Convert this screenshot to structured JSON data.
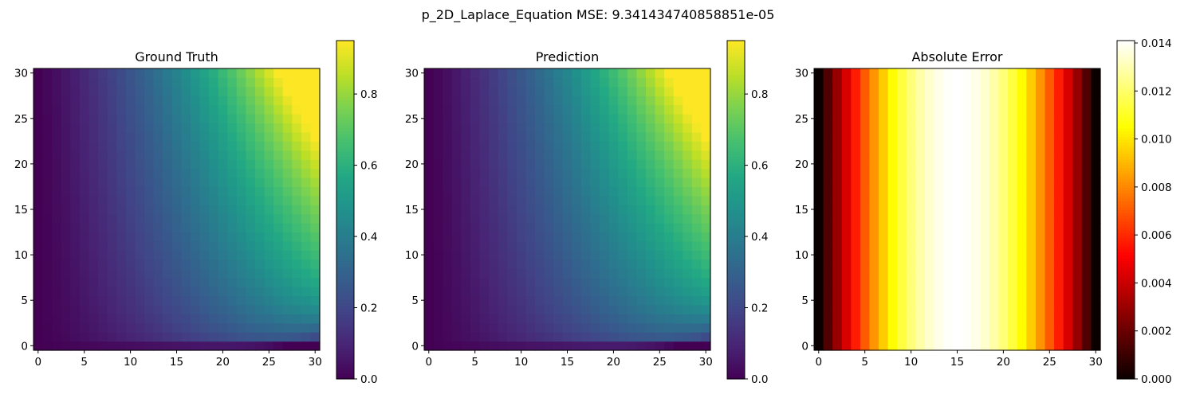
{
  "figure": {
    "suptitle": "p_2D_Laplace_Equation MSE: 9.341434740858851e-05"
  },
  "chart_data": [
    {
      "type": "heatmap",
      "title": "Ground Truth",
      "colormap": "viridis",
      "grid_size": 31,
      "x_ticks": [
        "0",
        "5",
        "10",
        "15",
        "20",
        "25",
        "30"
      ],
      "y_ticks": [
        "0",
        "5",
        "10",
        "15",
        "20",
        "25",
        "30"
      ],
      "xlim": [
        -0.5,
        30.5
      ],
      "ylim": [
        -0.5,
        30.5
      ],
      "color_range": [
        0,
        0.95
      ],
      "colorbar_ticks": [
        "0.0",
        "0.2",
        "0.4",
        "0.6",
        "0.8"
      ],
      "colorbar_tick_values": [
        0,
        0.2,
        0.4,
        0.6,
        0.8
      ]
    },
    {
      "type": "heatmap",
      "title": "Prediction",
      "colormap": "viridis",
      "grid_size": 31,
      "x_ticks": [
        "0",
        "5",
        "10",
        "15",
        "20",
        "25",
        "30"
      ],
      "y_ticks": [
        "0",
        "5",
        "10",
        "15",
        "20",
        "25",
        "30"
      ],
      "xlim": [
        -0.5,
        30.5
      ],
      "ylim": [
        -0.5,
        30.5
      ],
      "color_range": [
        0,
        0.95
      ],
      "colorbar_ticks": [
        "0.0",
        "0.2",
        "0.4",
        "0.6",
        "0.8"
      ],
      "colorbar_tick_values": [
        0,
        0.2,
        0.4,
        0.6,
        0.8
      ]
    },
    {
      "type": "heatmap",
      "title": "Absolute Error",
      "colormap": "hot",
      "grid_size": 31,
      "x_ticks": [
        "0",
        "5",
        "10",
        "15",
        "20",
        "25",
        "30"
      ],
      "y_ticks": [
        "0",
        "5",
        "10",
        "15",
        "20",
        "25",
        "30"
      ],
      "xlim": [
        -0.5,
        30.5
      ],
      "ylim": [
        -0.5,
        30.5
      ],
      "color_range": [
        0,
        0.0141
      ],
      "colorbar_ticks": [
        "0.000",
        "0.002",
        "0.004",
        "0.006",
        "0.008",
        "0.010",
        "0.012",
        "0.014"
      ],
      "colorbar_tick_values": [
        0,
        0.002,
        0.004,
        0.006,
        0.008,
        0.01,
        0.012,
        0.014
      ]
    }
  ]
}
